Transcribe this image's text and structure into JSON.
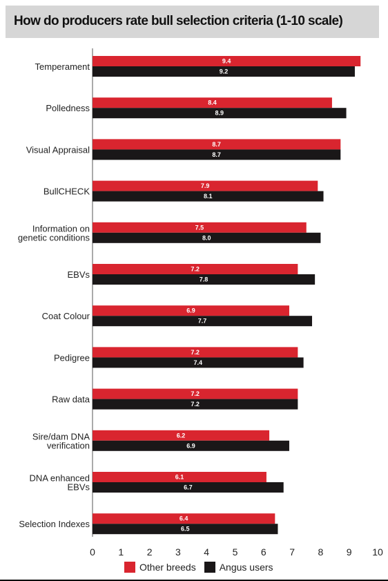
{
  "colors": {
    "other_breeds": "#d9252f",
    "angus_users": "#1a1718",
    "title_bg": "#d6d6d6"
  },
  "chart_data": {
    "type": "bar",
    "orientation": "horizontal",
    "title": "How do producers rate bull selection criteria (1-10 scale)",
    "categories": [
      [
        "Temperament"
      ],
      [
        "Polledness"
      ],
      [
        "Visual Appraisal"
      ],
      [
        "BullCHECK"
      ],
      [
        "Information on",
        "genetic conditions"
      ],
      [
        "EBVs"
      ],
      [
        "Coat Colour"
      ],
      [
        "Pedigree"
      ],
      [
        "Raw data"
      ],
      [
        "Sire/dam DNA",
        "verification"
      ],
      [
        "DNA enhanced",
        "EBVs"
      ],
      [
        "Selection Indexes"
      ]
    ],
    "series": [
      {
        "name": "Other breeds",
        "color": "#d9252f",
        "values": [
          9.4,
          8.4,
          8.7,
          7.9,
          7.5,
          7.2,
          6.9,
          7.2,
          7.2,
          6.2,
          6.1,
          6.4
        ]
      },
      {
        "name": "Angus users",
        "color": "#1a1718",
        "values": [
          9.2,
          8.9,
          8.7,
          8.1,
          8.0,
          7.8,
          7.7,
          7.4,
          7.2,
          6.9,
          6.7,
          6.5
        ]
      }
    ],
    "xlim": [
      0,
      10
    ],
    "xticks": [
      0,
      1,
      2,
      3,
      4,
      5,
      6,
      7,
      8,
      9,
      10
    ],
    "grid": false,
    "legend_position": "bottom"
  }
}
